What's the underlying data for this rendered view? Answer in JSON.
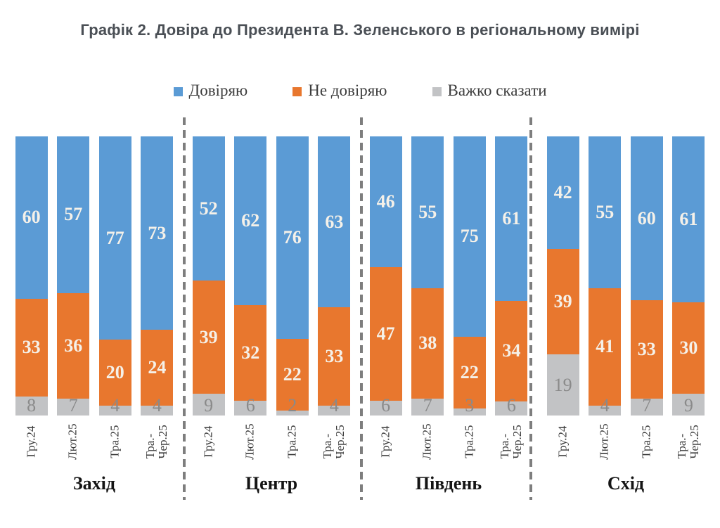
{
  "title": "Графік 2. Довіра до Президента В. Зеленського в регіональному вимірі",
  "colors": {
    "trust": "#5B9BD5",
    "distrust": "#E8772E",
    "undecided": "#C2C3C5",
    "divider": "#7E7E7E",
    "value_label_light": "#F5F1E9",
    "value_label_gray": "#8A8A8A",
    "title_text": "#4A4F55"
  },
  "legend": {
    "items": [
      {
        "label": "Довіряю",
        "color": "#5B9BD5"
      },
      {
        "label": "Не довіряю",
        "color": "#E8772E"
      },
      {
        "label": "Важко сказати",
        "color": "#C2C3C5"
      }
    ]
  },
  "chart_data": {
    "type": "bar",
    "variant": "stacked-100-percent",
    "title": "Графік 2. Довіра до Президента В. Зеленського в регіональному вимірі",
    "series_names": [
      "Довіряю",
      "Не довіряю",
      "Важко сказати"
    ],
    "periods": [
      "Гру.24",
      "Лют.25",
      "Тра.25",
      "Тра.-\nЧер.25"
    ],
    "regions": [
      {
        "name": "Захід",
        "bars": [
          [
            60,
            33,
            8
          ],
          [
            57,
            36,
            7
          ],
          [
            77,
            20,
            4
          ],
          [
            73,
            24,
            4
          ]
        ]
      },
      {
        "name": "Центр",
        "bars": [
          [
            52,
            39,
            9
          ],
          [
            62,
            32,
            6
          ],
          [
            76,
            22,
            2
          ],
          [
            63,
            33,
            4
          ]
        ]
      },
      {
        "name": "Південь",
        "bars": [
          [
            46,
            47,
            6
          ],
          [
            55,
            38,
            7
          ],
          [
            75,
            22,
            3
          ],
          [
            61,
            34,
            6
          ]
        ]
      },
      {
        "name": "Схід",
        "bars": [
          [
            42,
            39,
            19
          ],
          [
            55,
            41,
            4
          ],
          [
            60,
            33,
            7
          ],
          [
            61,
            30,
            9
          ]
        ]
      }
    ],
    "ylim": [
      0,
      100
    ],
    "grid": false,
    "legend_position": "top",
    "bar_value_labels": "inside"
  }
}
